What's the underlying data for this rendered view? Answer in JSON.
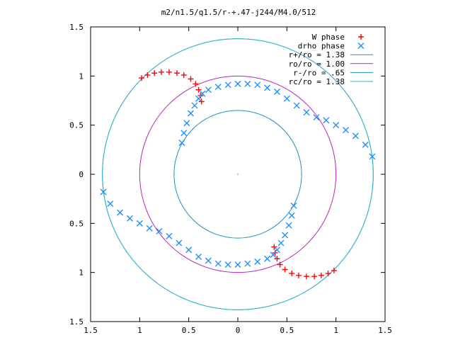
{
  "chart_data": {
    "type": "scatter",
    "title": "m2/n1.5/q1.5/r-+.47-j244/M4.0/512",
    "xlabel": "",
    "ylabel": "",
    "xlim": [
      -1.5,
      1.5
    ],
    "ylim": [
      -1.5,
      1.5
    ],
    "x_tick_labels": [
      "1.5",
      "1",
      "0.5",
      "0",
      "0.5",
      "1",
      "1.5"
    ],
    "y_tick_labels": [
      "1.5",
      "1",
      "0.5",
      "0",
      "0.5",
      "1",
      "1.5"
    ],
    "grid": false,
    "legend_position": "top-right",
    "legend": [
      {
        "label": "W phase",
        "kind": "marker-plus",
        "color": "#ff0000"
      },
      {
        "label": "drho phase",
        "kind": "marker-x",
        "color": "#1e90ff"
      },
      {
        "label": "r+/ro = 1.38",
        "kind": "line",
        "color": "#1f8fc0"
      },
      {
        "label": "ro/ro = 1.00",
        "kind": "line",
        "color": "#bb22bb"
      },
      {
        "label": "r-/ro = .65",
        "kind": "line",
        "color": "#1f8fc0"
      },
      {
        "label": "rc/ro = 1.38",
        "kind": "line",
        "color": "#33b5d0"
      }
    ],
    "circles": [
      {
        "name": "r+/ro = 1.38",
        "radius": 1.38,
        "color": "#1f8fc0"
      },
      {
        "name": "ro/ro = 1.00",
        "radius": 1.0,
        "color": "#bb22bb"
      },
      {
        "name": "r-/ro = .65",
        "radius": 0.65,
        "color": "#1f8fc0"
      },
      {
        "name": "rc/ro = 1.38",
        "radius": 1.38,
        "color": "#33b5d0"
      }
    ],
    "series": [
      {
        "name": "W phase",
        "marker": "+",
        "color": "#ff0000",
        "x": [
          -0.98,
          -0.92,
          -0.85,
          -0.78,
          -0.7,
          -0.62,
          -0.55,
          -0.48,
          -0.43,
          -0.4,
          -0.38,
          -0.37,
          0.98,
          0.92,
          0.85,
          0.78,
          0.7,
          0.62,
          0.55,
          0.48,
          0.43,
          0.4,
          0.38,
          0.37
        ],
        "y": [
          0.98,
          1.01,
          1.03,
          1.04,
          1.04,
          1.03,
          1.01,
          0.97,
          0.92,
          0.86,
          0.8,
          0.74,
          -0.98,
          -1.01,
          -1.03,
          -1.04,
          -1.04,
          -1.03,
          -1.01,
          -0.97,
          -0.92,
          -0.86,
          -0.8,
          -0.74
        ]
      },
      {
        "name": "drho phase",
        "marker": "x",
        "color": "#1e90ff",
        "x": [
          -0.57,
          -0.55,
          -0.52,
          -0.48,
          -0.44,
          -0.4,
          -0.36,
          -0.3,
          -0.2,
          -0.1,
          0.0,
          0.1,
          0.2,
          0.3,
          0.4,
          0.5,
          0.6,
          0.7,
          0.8,
          0.9,
          1.0,
          1.1,
          1.2,
          1.3,
          1.37,
          0.57,
          0.55,
          0.52,
          0.48,
          0.44,
          0.4,
          0.36,
          0.3,
          0.2,
          0.1,
          0.0,
          -0.1,
          -0.2,
          -0.3,
          -0.4,
          -0.5,
          -0.6,
          -0.7,
          -0.8,
          -0.9,
          -1.0,
          -1.1,
          -1.2,
          -1.3,
          -1.37
        ],
        "y": [
          0.32,
          0.42,
          0.52,
          0.62,
          0.7,
          0.77,
          0.82,
          0.86,
          0.89,
          0.91,
          0.92,
          0.92,
          0.91,
          0.88,
          0.84,
          0.77,
          0.7,
          0.63,
          0.58,
          0.55,
          0.5,
          0.45,
          0.39,
          0.3,
          0.18,
          -0.32,
          -0.42,
          -0.52,
          -0.62,
          -0.7,
          -0.77,
          -0.82,
          -0.86,
          -0.89,
          -0.91,
          -0.92,
          -0.92,
          -0.91,
          -0.88,
          -0.84,
          -0.77,
          -0.7,
          -0.63,
          -0.58,
          -0.55,
          -0.5,
          -0.45,
          -0.39,
          -0.3,
          -0.18
        ]
      }
    ]
  }
}
